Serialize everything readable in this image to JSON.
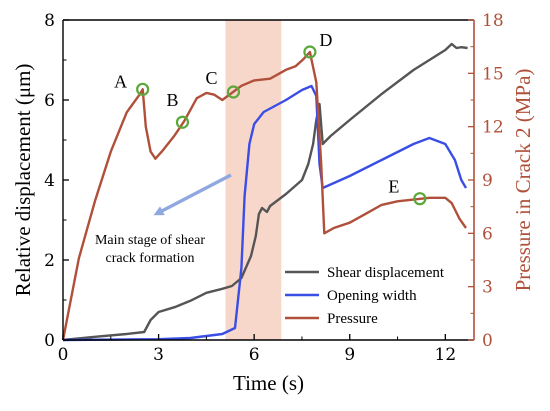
{
  "chart_data": {
    "type": "line",
    "xlabel": "Time (s)",
    "ylabel": "Relative displacement (μm)",
    "y2label": "Pressure in Crack 2 (MPa)",
    "xlim": [
      0,
      12.9
    ],
    "ylim": [
      0,
      8
    ],
    "y2lim": [
      0,
      18
    ],
    "x_ticks": [
      0,
      3,
      6,
      9,
      12
    ],
    "y_ticks": [
      0,
      2,
      4,
      6,
      8
    ],
    "y2_ticks": [
      0,
      3,
      6,
      9,
      12,
      15,
      18
    ],
    "grid": false,
    "legend_position": "bottom-right",
    "highlight_band": {
      "x_start": 5.1,
      "x_end": 6.85,
      "color": "#f6c9b9"
    },
    "series": [
      {
        "name": "Shear displacement",
        "axis": "left",
        "color": "#555555",
        "points": [
          [
            0,
            0
          ],
          [
            1,
            0.08
          ],
          [
            2,
            0.15
          ],
          [
            2.55,
            0.2
          ],
          [
            2.75,
            0.5
          ],
          [
            3,
            0.7
          ],
          [
            3.5,
            0.82
          ],
          [
            4,
            0.98
          ],
          [
            4.5,
            1.18
          ],
          [
            5,
            1.28
          ],
          [
            5.3,
            1.35
          ],
          [
            5.6,
            1.55
          ],
          [
            5.9,
            2.1
          ],
          [
            6.05,
            2.6
          ],
          [
            6.15,
            3.15
          ],
          [
            6.25,
            3.3
          ],
          [
            6.4,
            3.2
          ],
          [
            6.5,
            3.35
          ],
          [
            7,
            3.65
          ],
          [
            7.5,
            4.0
          ],
          [
            7.7,
            4.4
          ],
          [
            7.85,
            4.9
          ],
          [
            7.95,
            5.5
          ],
          [
            8.05,
            5.9
          ],
          [
            8.15,
            4.9
          ],
          [
            8.4,
            5.1
          ],
          [
            9,
            5.5
          ],
          [
            10,
            6.15
          ],
          [
            11,
            6.75
          ],
          [
            12,
            7.25
          ],
          [
            12.2,
            7.4
          ],
          [
            12.35,
            7.3
          ],
          [
            12.5,
            7.32
          ],
          [
            12.7,
            7.3
          ]
        ]
      },
      {
        "name": "Opening width",
        "axis": "left",
        "color": "#3a4ee6",
        "points": [
          [
            0,
            0
          ],
          [
            3,
            0.02
          ],
          [
            4,
            0.05
          ],
          [
            5,
            0.15
          ],
          [
            5.4,
            0.3
          ],
          [
            5.6,
            1.8
          ],
          [
            5.7,
            3.6
          ],
          [
            5.85,
            4.9
          ],
          [
            6,
            5.4
          ],
          [
            6.3,
            5.7
          ],
          [
            7,
            6.0
          ],
          [
            7.5,
            6.25
          ],
          [
            7.8,
            6.35
          ],
          [
            7.95,
            6.1
          ],
          [
            8.05,
            4.4
          ],
          [
            8.15,
            3.8
          ],
          [
            9,
            4.1
          ],
          [
            10,
            4.5
          ],
          [
            11,
            4.9
          ],
          [
            11.5,
            5.05
          ],
          [
            12,
            4.9
          ],
          [
            12.3,
            4.5
          ],
          [
            12.5,
            4.0
          ],
          [
            12.65,
            3.8
          ]
        ]
      },
      {
        "name": "Pressure",
        "axis": "right",
        "color": "#b0503a",
        "points": [
          [
            0,
            0
          ],
          [
            0.5,
            4.6
          ],
          [
            1,
            7.8
          ],
          [
            1.5,
            10.6
          ],
          [
            2,
            12.8
          ],
          [
            2.4,
            13.8
          ],
          [
            2.5,
            14.1
          ],
          [
            2.6,
            12.0
          ],
          [
            2.75,
            10.6
          ],
          [
            2.9,
            10.2
          ],
          [
            3.1,
            10.6
          ],
          [
            3.5,
            11.5
          ],
          [
            3.8,
            12.3
          ],
          [
            4.2,
            13.6
          ],
          [
            4.5,
            13.9
          ],
          [
            4.75,
            13.8
          ],
          [
            5,
            13.5
          ],
          [
            5.3,
            13.9
          ],
          [
            5.6,
            14.3
          ],
          [
            6,
            14.6
          ],
          [
            6.5,
            14.7
          ],
          [
            7,
            15.2
          ],
          [
            7.3,
            15.4
          ],
          [
            7.55,
            15.8
          ],
          [
            7.75,
            16.2
          ],
          [
            7.95,
            14.5
          ],
          [
            8.1,
            10.0
          ],
          [
            8.2,
            6.0
          ],
          [
            8.5,
            6.3
          ],
          [
            9,
            6.6
          ],
          [
            9.5,
            7.1
          ],
          [
            10,
            7.6
          ],
          [
            10.5,
            7.8
          ],
          [
            11,
            7.9
          ],
          [
            11.5,
            8.0
          ],
          [
            12,
            8.0
          ],
          [
            12.2,
            7.7
          ],
          [
            12.45,
            6.8
          ],
          [
            12.65,
            6.3
          ]
        ]
      }
    ],
    "markers": [
      {
        "label": "A",
        "x": 2.5,
        "y2": 14.1
      },
      {
        "label": "B",
        "x": 3.75,
        "y2": 12.25
      },
      {
        "label": "C",
        "x": 5.35,
        "y2": 13.95
      },
      {
        "label": "D",
        "x": 7.75,
        "y2": 16.2
      },
      {
        "label": "E",
        "x": 11.2,
        "y2": 7.95
      }
    ],
    "annotation": {
      "lines": [
        "Main stage of shear",
        "crack formation"
      ]
    }
  }
}
